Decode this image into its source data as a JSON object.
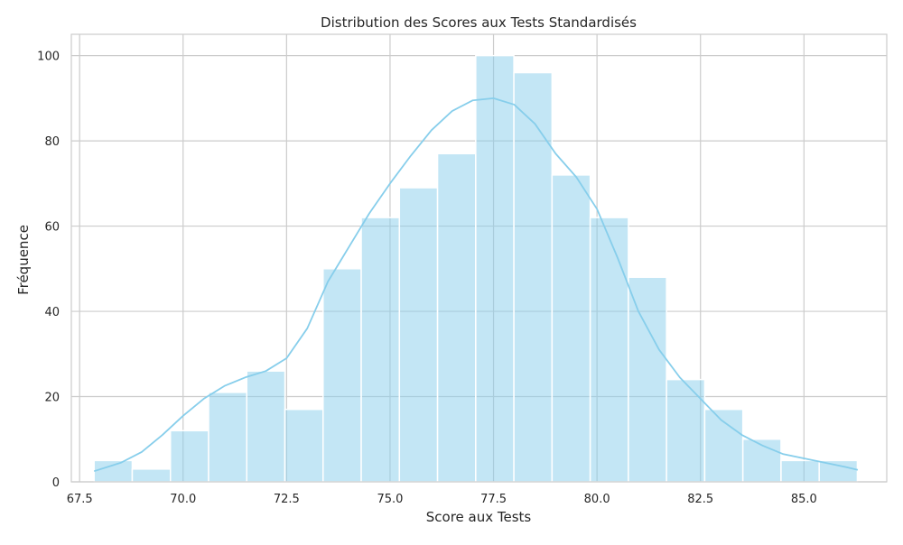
{
  "chart_data": {
    "type": "histogram",
    "title": "Distribution des Scores aux Tests Standardisés",
    "xlabel": "Score aux Tests",
    "ylabel": "Fréquence",
    "xlim": [
      67.3,
      87.0
    ],
    "ylim": [
      0,
      105
    ],
    "xticks": [
      67.5,
      70.0,
      72.5,
      75.0,
      77.5,
      80.0,
      82.5,
      85.0
    ],
    "xtick_labels": [
      "67.5",
      "70.0",
      "72.5",
      "75.0",
      "77.5",
      "80.0",
      "82.5",
      "85.0"
    ],
    "yticks": [
      0,
      20,
      40,
      60,
      80,
      100
    ],
    "ytick_labels": [
      "0",
      "20",
      "40",
      "60",
      "80",
      "100"
    ],
    "grid": true,
    "bar_color": "#87ceeb",
    "line_color": "#87ceeb",
    "grid_color": "#cccccc",
    "bins": {
      "start": 67.85,
      "width": 0.922,
      "counts": [
        5,
        3,
        12,
        21,
        26,
        17,
        50,
        62,
        69,
        77,
        100,
        96,
        72,
        62,
        48,
        24,
        17,
        10,
        5,
        5
      ]
    },
    "kde": {
      "x": [
        67.85,
        68.5,
        69.0,
        69.5,
        70.0,
        70.5,
        71.0,
        71.5,
        72.0,
        72.5,
        73.0,
        73.5,
        74.0,
        74.5,
        75.0,
        75.5,
        76.0,
        76.5,
        77.0,
        77.5,
        78.0,
        78.5,
        79.0,
        79.5,
        80.0,
        80.5,
        81.0,
        81.5,
        82.0,
        82.5,
        83.0,
        83.5,
        84.0,
        84.5,
        85.0,
        85.5,
        86.0,
        86.3
      ],
      "y": [
        2.5,
        4.5,
        7.0,
        11.0,
        15.5,
        19.5,
        22.5,
        24.5,
        26.0,
        29.0,
        36.0,
        47.0,
        55.0,
        63.0,
        70.0,
        76.5,
        82.5,
        87.0,
        89.5,
        90.0,
        88.5,
        84.0,
        77.0,
        71.5,
        64.0,
        52.5,
        40.0,
        31.0,
        24.5,
        19.5,
        14.5,
        11.0,
        8.5,
        6.5,
        5.5,
        4.5,
        3.5,
        2.8
      ]
    }
  }
}
